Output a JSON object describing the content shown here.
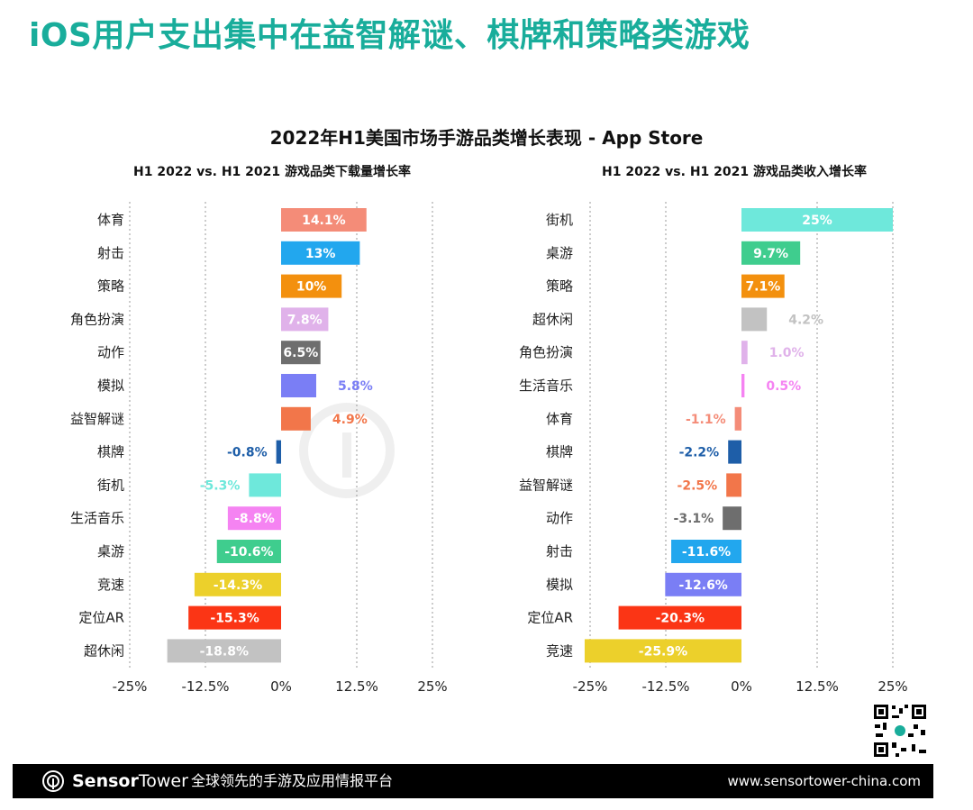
{
  "headline": "iOS用户支出集中在益智解谜、棋牌和策略类游戏",
  "footer": {
    "brand_prefix": "Sensor",
    "brand_suffix": "Tower",
    "tagline": "全球领先的手游及应用情报平台",
    "site": "www.sensortower-china.com"
  },
  "colors": {
    "headline": "#19ad9b",
    "footer_bg": "#000000"
  },
  "chart_data": [
    {
      "type": "bar",
      "orientation": "horizontal",
      "title": "2022年H1美国市场手游品类增长表现 - App Store",
      "subtitle": "H1 2022 vs. H1 2021 游戏品类下载量增长率",
      "xlim": [
        -25,
        25
      ],
      "xticks": [
        "-25%",
        "-12.5%",
        "0%",
        "12.5%",
        "25%"
      ],
      "grid": "vertical dotted",
      "categories": [
        "体育",
        "射击",
        "策略",
        "角色扮演",
        "动作",
        "模拟",
        "益智解谜",
        "棋牌",
        "街机",
        "生活音乐",
        "桌游",
        "竞速",
        "定位AR",
        "超休闲"
      ],
      "values": [
        14.1,
        13,
        10,
        7.8,
        6.5,
        5.8,
        4.9,
        -0.8,
        -5.3,
        -8.8,
        -10.6,
        -14.3,
        -15.3,
        -18.8
      ],
      "labels": [
        "14.1%",
        "13%",
        "10%",
        "7.8%",
        "6.5%",
        "5.8%",
        "4.9%",
        "-0.8%",
        "-5.3%",
        "-8.8%",
        "-10.6%",
        "-14.3%",
        "-15.3%",
        "-18.8%"
      ],
      "colors": [
        "#f48c78",
        "#22a7ee",
        "#f3900e",
        "#e0b2ea",
        "#6e6e6e",
        "#7a7ef5",
        "#f2764a",
        "#1e5ea8",
        "#6ee8db",
        "#f583f2",
        "#3fcd8e",
        "#ecd02b",
        "#fb3515",
        "#c2c2c2"
      ]
    },
    {
      "type": "bar",
      "orientation": "horizontal",
      "subtitle": "H1 2022 vs. H1 2021 游戏品类收入增长率",
      "xlim": [
        -25,
        25
      ],
      "xticks": [
        "-25%",
        "-12.5%",
        "0%",
        "12.5%",
        "25%"
      ],
      "grid": "vertical dotted",
      "categories": [
        "街机",
        "桌游",
        "策略",
        "超休闲",
        "角色扮演",
        "生活音乐",
        "体育",
        "棋牌",
        "益智解谜",
        "动作",
        "射击",
        "模拟",
        "定位AR",
        "竞速"
      ],
      "values": [
        25,
        9.7,
        7.1,
        4.2,
        1.0,
        0.5,
        -1.1,
        -2.2,
        -2.5,
        -3.1,
        -11.6,
        -12.6,
        -20.3,
        -25.9
      ],
      "labels": [
        "25%",
        "9.7%",
        "7.1%",
        "4.2%",
        "1.0%",
        "0.5%",
        "-1.1%",
        "-2.2%",
        "-2.5%",
        "-3.1%",
        "-11.6%",
        "-12.6%",
        "-20.3%",
        "-25.9%"
      ],
      "colors": [
        "#6ee8db",
        "#3fcd8e",
        "#f3900e",
        "#c2c2c2",
        "#e0b2ea",
        "#f583f2",
        "#f48c78",
        "#1e5ea8",
        "#f2764a",
        "#6e6e6e",
        "#22a7ee",
        "#7a7ef5",
        "#fb3515",
        "#ecd02b"
      ]
    }
  ]
}
